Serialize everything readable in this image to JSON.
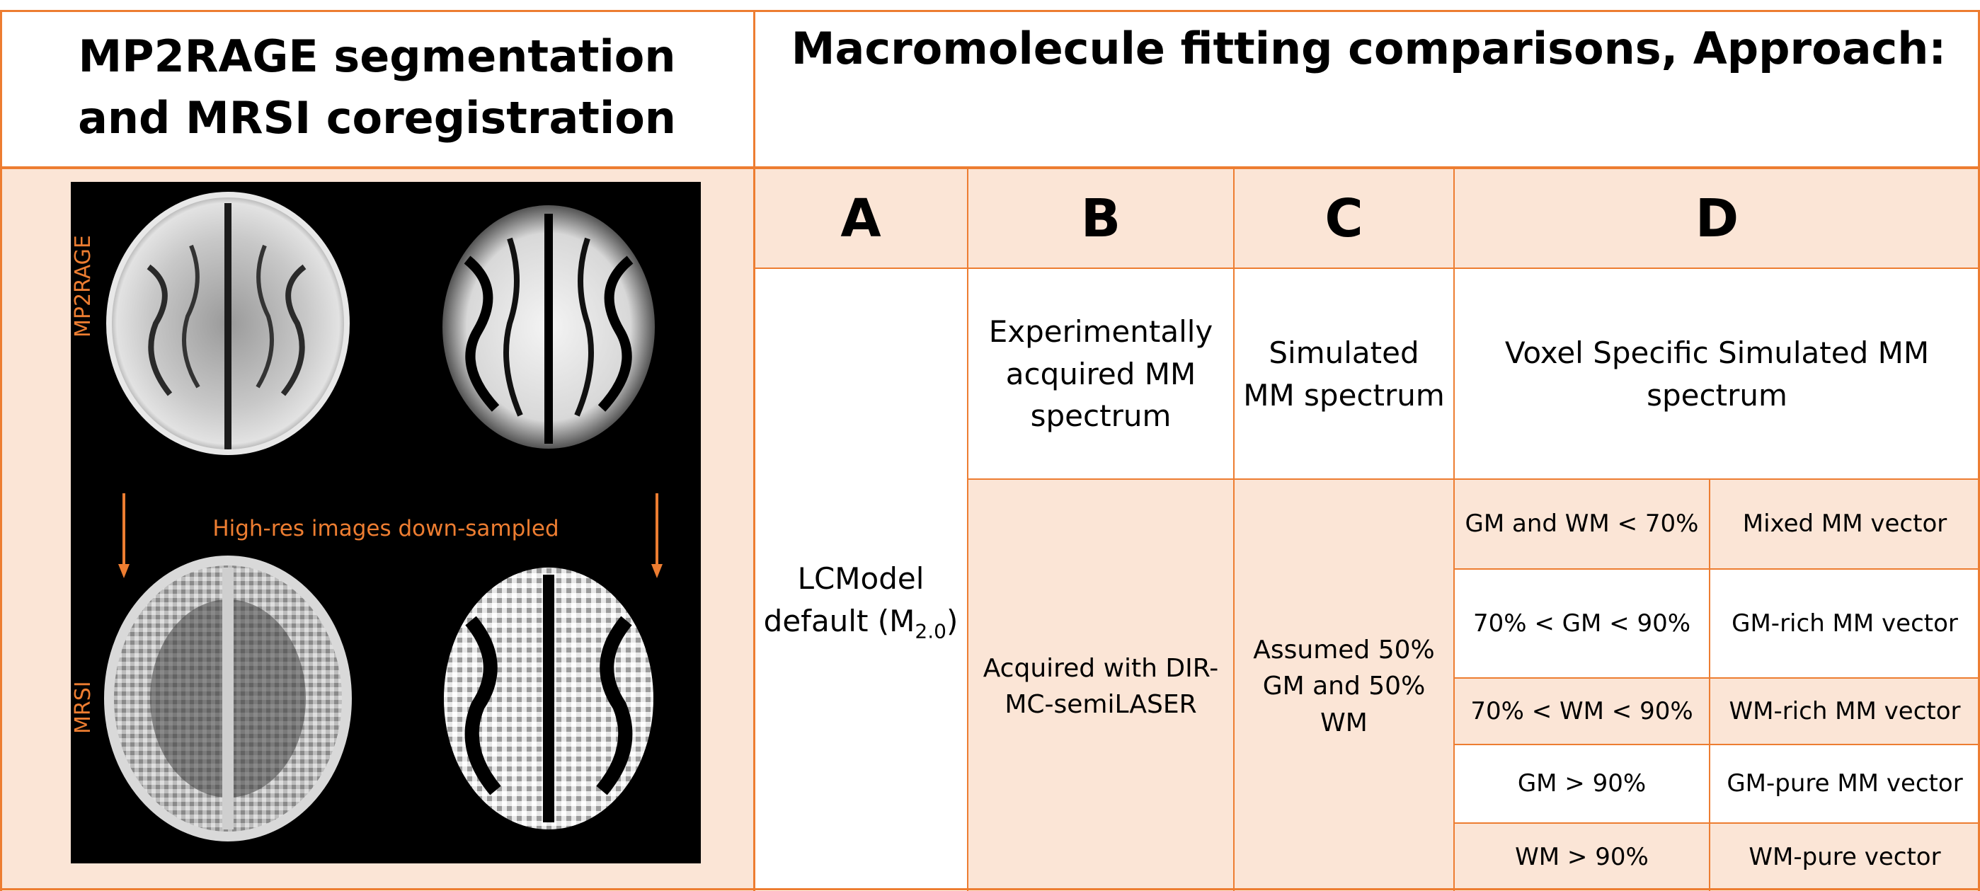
{
  "colors": {
    "accent": "#ED7D31",
    "fill": "#FBE5D6",
    "panel_background": "#000000"
  },
  "left_header": "MP2RAGE segmentation and MRSI coregistration",
  "right_header": "Macromolecule fitting comparisons, Approach:",
  "brain_panel": {
    "label_top": "MP2RAGE",
    "label_bottom": "MRSI",
    "downsample_text": "High-res images down-sampled"
  },
  "approaches": [
    {
      "letter": "A",
      "description": "",
      "detail": "LCModel default (M",
      "detail_subscript": "2.0",
      "detail_suffix": ")"
    },
    {
      "letter": "B",
      "description": "Experimentally acquired MM spectrum",
      "detail": "Acquired with DIR-MC-semiLASER"
    },
    {
      "letter": "C",
      "description": "Simulated MM spectrum",
      "detail": "Assumed 50% GM and 50% WM"
    },
    {
      "letter": "D",
      "description": "Voxel Specific Simulated MM spectrum"
    }
  ],
  "d_rows": [
    {
      "condition": "GM and WM < 70%",
      "vector": "Mixed MM vector"
    },
    {
      "condition": "70% < GM < 90%",
      "vector": "GM-rich MM vector"
    },
    {
      "condition": "70% < WM < 90%",
      "vector": "WM-rich MM vector"
    },
    {
      "condition": "GM > 90%",
      "vector": "GM-pure MM vector"
    },
    {
      "condition": "WM > 90%",
      "vector": "WM-pure vector"
    }
  ]
}
